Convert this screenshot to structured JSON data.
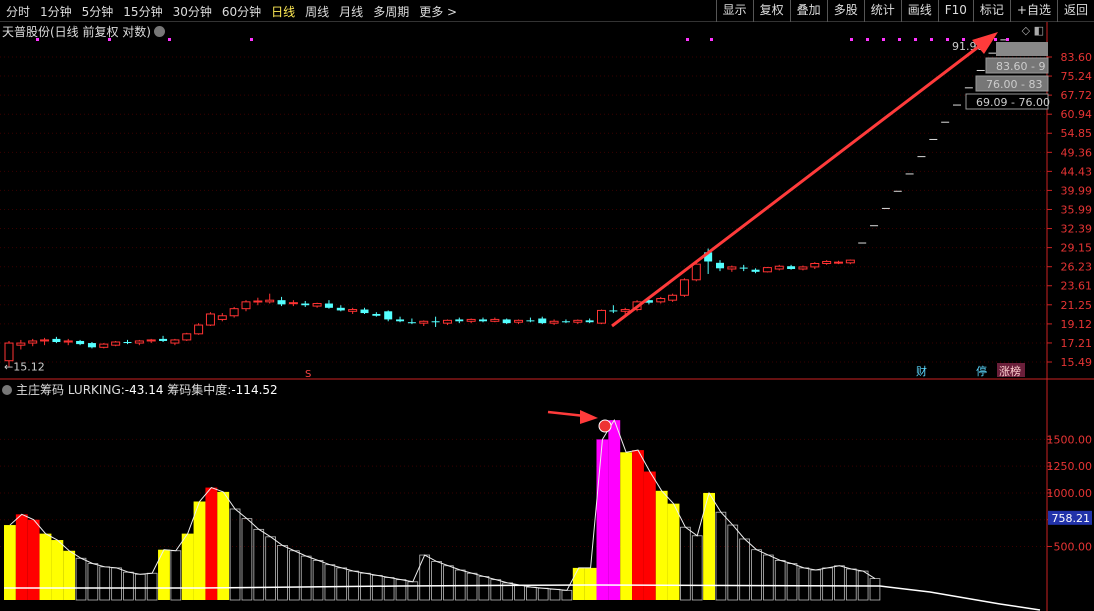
{
  "toolbar": {
    "periods": [
      "分时",
      "1分钟",
      "5分钟",
      "15分钟",
      "30分钟",
      "60分钟",
      "日线",
      "周线",
      "月线",
      "多周期",
      "更多 >"
    ],
    "active_period": "日线",
    "buttons": [
      "显示",
      "复权",
      "叠加",
      "多股",
      "统计",
      "画线",
      "F10",
      "标记",
      "+自选",
      "返回"
    ]
  },
  "title": "天普股份(日线 前复权 对数)",
  "price_axis": [
    "83.60",
    "75.24",
    "67.72",
    "60.94",
    "54.85",
    "49.36",
    "44.43",
    "39.99",
    "35.99",
    "32.39",
    "29.15",
    "26.23",
    "23.61",
    "21.25",
    "19.12",
    "17.21",
    "15.49"
  ],
  "low_marker": "15.12",
  "price_callouts": [
    "91.96",
    "83.60 - 9",
    "76.00 - 83",
    "69.09 - 76.00"
  ],
  "event_markers": {
    "finance": "财",
    "suspend": "停",
    "limit": "涨榜",
    "s_mark": "S"
  },
  "indicator": {
    "name": "主庄筹码",
    "lurking_label": "LURKING:",
    "lurking_value": "-43.14",
    "conc_label": "筹码集中度:",
    "conc_value": "-114.52",
    "axis": [
      "1500.00",
      "1250.00",
      "1000.00",
      "750.00",
      "500.00"
    ],
    "current_value": "758.21"
  },
  "colors": {
    "up": "#ff3333",
    "down": "#54ffff",
    "accent": "#ffea55",
    "volume_yellow": "#ffff00",
    "volume_red": "#ff0000",
    "volume_magenta": "#ff00ff",
    "arrow": "#ff3b3b",
    "dots": "#ff33ff"
  },
  "chart_data": {
    "type": "candlestick",
    "candles": [
      {
        "o": 15.6,
        "h": 17.4,
        "l": 15.1,
        "c": 17.2
      },
      {
        "o": 17.0,
        "h": 17.5,
        "l": 16.6,
        "c": 17.2
      },
      {
        "o": 17.2,
        "h": 17.6,
        "l": 16.9,
        "c": 17.4
      },
      {
        "o": 17.4,
        "h": 17.7,
        "l": 17.0,
        "c": 17.5
      },
      {
        "o": 17.6,
        "h": 17.8,
        "l": 17.2,
        "c": 17.3
      },
      {
        "o": 17.3,
        "h": 17.6,
        "l": 17.0,
        "c": 17.4
      },
      {
        "o": 17.4,
        "h": 17.5,
        "l": 17.0,
        "c": 17.1
      },
      {
        "o": 17.2,
        "h": 17.3,
        "l": 16.7,
        "c": 16.8
      },
      {
        "o": 16.8,
        "h": 17.2,
        "l": 16.7,
        "c": 17.1
      },
      {
        "o": 17.0,
        "h": 17.4,
        "l": 16.9,
        "c": 17.3
      },
      {
        "o": 17.3,
        "h": 17.5,
        "l": 17.1,
        "c": 17.2
      },
      {
        "o": 17.2,
        "h": 17.5,
        "l": 17.0,
        "c": 17.4
      },
      {
        "o": 17.4,
        "h": 17.6,
        "l": 17.2,
        "c": 17.5
      },
      {
        "o": 17.6,
        "h": 17.9,
        "l": 17.3,
        "c": 17.4
      },
      {
        "o": 17.2,
        "h": 17.6,
        "l": 17.0,
        "c": 17.5
      },
      {
        "o": 17.5,
        "h": 18.2,
        "l": 17.4,
        "c": 18.1
      },
      {
        "o": 18.1,
        "h": 19.2,
        "l": 18.0,
        "c": 19.0
      },
      {
        "o": 19.0,
        "h": 20.4,
        "l": 18.9,
        "c": 20.2
      },
      {
        "o": 19.6,
        "h": 20.3,
        "l": 19.4,
        "c": 20.0
      },
      {
        "o": 20.0,
        "h": 21.0,
        "l": 19.8,
        "c": 20.8
      },
      {
        "o": 20.8,
        "h": 21.8,
        "l": 20.5,
        "c": 21.6
      },
      {
        "o": 21.6,
        "h": 22.1,
        "l": 21.2,
        "c": 21.7
      },
      {
        "o": 21.6,
        "h": 22.6,
        "l": 21.4,
        "c": 21.8
      },
      {
        "o": 21.8,
        "h": 22.2,
        "l": 21.1,
        "c": 21.3
      },
      {
        "o": 21.4,
        "h": 21.8,
        "l": 21.1,
        "c": 21.5
      },
      {
        "o": 21.4,
        "h": 21.7,
        "l": 21.0,
        "c": 21.2
      },
      {
        "o": 21.1,
        "h": 21.5,
        "l": 20.9,
        "c": 21.4
      },
      {
        "o": 21.4,
        "h": 21.8,
        "l": 20.8,
        "c": 20.9
      },
      {
        "o": 20.9,
        "h": 21.2,
        "l": 20.5,
        "c": 20.6
      },
      {
        "o": 20.5,
        "h": 20.9,
        "l": 20.2,
        "c": 20.7
      },
      {
        "o": 20.7,
        "h": 20.9,
        "l": 20.2,
        "c": 20.3
      },
      {
        "o": 20.2,
        "h": 20.4,
        "l": 19.9,
        "c": 20.0
      },
      {
        "o": 20.5,
        "h": 20.6,
        "l": 19.4,
        "c": 19.6
      },
      {
        "o": 19.6,
        "h": 19.9,
        "l": 19.3,
        "c": 19.4
      },
      {
        "o": 19.3,
        "h": 19.7,
        "l": 19.1,
        "c": 19.2
      },
      {
        "o": 19.2,
        "h": 19.5,
        "l": 18.9,
        "c": 19.4
      },
      {
        "o": 19.4,
        "h": 19.9,
        "l": 18.8,
        "c": 19.3
      },
      {
        "o": 19.2,
        "h": 19.6,
        "l": 19.0,
        "c": 19.5
      },
      {
        "o": 19.6,
        "h": 19.8,
        "l": 19.2,
        "c": 19.4
      },
      {
        "o": 19.4,
        "h": 19.7,
        "l": 19.2,
        "c": 19.6
      },
      {
        "o": 19.6,
        "h": 19.8,
        "l": 19.3,
        "c": 19.4
      },
      {
        "o": 19.4,
        "h": 19.8,
        "l": 19.3,
        "c": 19.6
      },
      {
        "o": 19.6,
        "h": 19.7,
        "l": 19.1,
        "c": 19.2
      },
      {
        "o": 19.3,
        "h": 19.6,
        "l": 19.1,
        "c": 19.5
      },
      {
        "o": 19.5,
        "h": 19.8,
        "l": 19.3,
        "c": 19.4
      },
      {
        "o": 19.7,
        "h": 19.9,
        "l": 19.1,
        "c": 19.2
      },
      {
        "o": 19.2,
        "h": 19.6,
        "l": 19.0,
        "c": 19.4
      },
      {
        "o": 19.4,
        "h": 19.6,
        "l": 19.2,
        "c": 19.3
      },
      {
        "o": 19.3,
        "h": 19.6,
        "l": 19.1,
        "c": 19.5
      },
      {
        "o": 19.5,
        "h": 19.7,
        "l": 19.2,
        "c": 19.3
      },
      {
        "o": 19.2,
        "h": 20.7,
        "l": 19.1,
        "c": 20.6
      },
      {
        "o": 20.6,
        "h": 21.2,
        "l": 20.3,
        "c": 20.5
      },
      {
        "o": 20.5,
        "h": 20.9,
        "l": 20.1,
        "c": 20.7
      },
      {
        "o": 20.7,
        "h": 21.8,
        "l": 20.5,
        "c": 21.6
      },
      {
        "o": 21.8,
        "h": 22.1,
        "l": 21.3,
        "c": 21.5
      },
      {
        "o": 21.6,
        "h": 22.2,
        "l": 21.4,
        "c": 22.0
      },
      {
        "o": 21.8,
        "h": 22.6,
        "l": 21.6,
        "c": 22.4
      },
      {
        "o": 22.4,
        "h": 24.6,
        "l": 22.2,
        "c": 24.4
      },
      {
        "o": 24.4,
        "h": 26.8,
        "l": 24.2,
        "c": 26.6
      },
      {
        "o": 28.4,
        "h": 29.0,
        "l": 25.2,
        "c": 27.0
      },
      {
        "o": 26.8,
        "h": 27.2,
        "l": 25.6,
        "c": 26.0
      },
      {
        "o": 25.9,
        "h": 26.4,
        "l": 25.5,
        "c": 26.2
      },
      {
        "o": 26.1,
        "h": 26.5,
        "l": 25.6,
        "c": 26.0
      },
      {
        "o": 25.8,
        "h": 26.0,
        "l": 25.3,
        "c": 25.5
      },
      {
        "o": 25.5,
        "h": 26.2,
        "l": 25.4,
        "c": 26.1
      },
      {
        "o": 25.9,
        "h": 26.5,
        "l": 25.7,
        "c": 26.3
      },
      {
        "o": 26.3,
        "h": 26.5,
        "l": 25.8,
        "c": 25.9
      },
      {
        "o": 25.9,
        "h": 26.4,
        "l": 25.7,
        "c": 26.2
      },
      {
        "o": 26.2,
        "h": 26.9,
        "l": 25.9,
        "c": 26.7
      },
      {
        "o": 26.7,
        "h": 27.2,
        "l": 26.5,
        "c": 27.0
      },
      {
        "o": 26.9,
        "h": 27.1,
        "l": 26.6,
        "c": 26.9
      },
      {
        "o": 26.8,
        "h": 27.3,
        "l": 26.6,
        "c": 27.2
      },
      {
        "o": 29.9,
        "h": 29.9,
        "l": 29.9,
        "c": 29.9
      },
      {
        "o": 32.9,
        "h": 32.9,
        "l": 32.9,
        "c": 32.9
      },
      {
        "o": 36.2,
        "h": 36.2,
        "l": 36.2,
        "c": 36.2
      },
      {
        "o": 39.8,
        "h": 39.8,
        "l": 39.8,
        "c": 39.8
      },
      {
        "o": 43.8,
        "h": 43.8,
        "l": 43.8,
        "c": 43.8
      },
      {
        "o": 48.2,
        "h": 48.2,
        "l": 48.2,
        "c": 48.2
      },
      {
        "o": 53.0,
        "h": 53.0,
        "l": 53.0,
        "c": 53.0
      },
      {
        "o": 58.3,
        "h": 58.3,
        "l": 58.3,
        "c": 58.3
      },
      {
        "o": 64.1,
        "h": 64.1,
        "l": 64.1,
        "c": 64.1
      },
      {
        "o": 70.5,
        "h": 70.5,
        "l": 70.5,
        "c": 70.5
      },
      {
        "o": 77.6,
        "h": 77.6,
        "l": 77.6,
        "c": 77.6
      },
      {
        "o": 85.4,
        "h": 85.4,
        "l": 85.4,
        "c": 85.4
      },
      {
        "o": 91.9,
        "h": 91.9,
        "l": 91.9,
        "c": 91.9
      }
    ],
    "indicator_bars": [
      {
        "v": 700,
        "c": "yellow"
      },
      {
        "v": 800,
        "c": "red"
      },
      {
        "v": 750,
        "c": "red"
      },
      {
        "v": 620,
        "c": "yellow"
      },
      {
        "v": 560,
        "c": "yellow"
      },
      {
        "v": 460,
        "c": "yellow"
      },
      {
        "v": 390,
        "c": "w"
      },
      {
        "v": 340,
        "c": "w"
      },
      {
        "v": 310,
        "c": "w"
      },
      {
        "v": 300,
        "c": "w"
      },
      {
        "v": 260,
        "c": "w"
      },
      {
        "v": 240,
        "c": "w"
      },
      {
        "v": 250,
        "c": "w"
      },
      {
        "v": 470,
        "c": "yellow"
      },
      {
        "v": 460,
        "c": "w"
      },
      {
        "v": 620,
        "c": "yellow"
      },
      {
        "v": 920,
        "c": "yellow"
      },
      {
        "v": 1050,
        "c": "red"
      },
      {
        "v": 1010,
        "c": "yellow"
      },
      {
        "v": 850,
        "c": "w"
      },
      {
        "v": 760,
        "c": "w"
      },
      {
        "v": 660,
        "c": "w"
      },
      {
        "v": 590,
        "c": "w"
      },
      {
        "v": 510,
        "c": "w"
      },
      {
        "v": 460,
        "c": "w"
      },
      {
        "v": 410,
        "c": "w"
      },
      {
        "v": 370,
        "c": "w"
      },
      {
        "v": 330,
        "c": "w"
      },
      {
        "v": 300,
        "c": "w"
      },
      {
        "v": 270,
        "c": "w"
      },
      {
        "v": 250,
        "c": "w"
      },
      {
        "v": 230,
        "c": "w"
      },
      {
        "v": 210,
        "c": "w"
      },
      {
        "v": 190,
        "c": "w"
      },
      {
        "v": 170,
        "c": "w"
      },
      {
        "v": 420,
        "c": "w"
      },
      {
        "v": 360,
        "c": "w"
      },
      {
        "v": 320,
        "c": "w"
      },
      {
        "v": 280,
        "c": "w"
      },
      {
        "v": 250,
        "c": "w"
      },
      {
        "v": 220,
        "c": "w"
      },
      {
        "v": 190,
        "c": "w"
      },
      {
        "v": 160,
        "c": "w"
      },
      {
        "v": 140,
        "c": "w"
      },
      {
        "v": 120,
        "c": "w"
      },
      {
        "v": 110,
        "c": "w"
      },
      {
        "v": 100,
        "c": "w"
      },
      {
        "v": 90,
        "c": "w"
      },
      {
        "v": 300,
        "c": "yellow"
      },
      {
        "v": 300,
        "c": "yellow"
      },
      {
        "v": 1500,
        "c": "magenta"
      },
      {
        "v": 1680,
        "c": "magenta"
      },
      {
        "v": 1380,
        "c": "yellow"
      },
      {
        "v": 1400,
        "c": "red"
      },
      {
        "v": 1200,
        "c": "red"
      },
      {
        "v": 1020,
        "c": "yellow"
      },
      {
        "v": 900,
        "c": "yellow"
      },
      {
        "v": 680,
        "c": "w"
      },
      {
        "v": 600,
        "c": "w"
      },
      {
        "v": 1000,
        "c": "yellow"
      },
      {
        "v": 820,
        "c": "w"
      },
      {
        "v": 700,
        "c": "w"
      },
      {
        "v": 570,
        "c": "w"
      },
      {
        "v": 470,
        "c": "w"
      },
      {
        "v": 420,
        "c": "w"
      },
      {
        "v": 370,
        "c": "w"
      },
      {
        "v": 340,
        "c": "w"
      },
      {
        "v": 300,
        "c": "w"
      },
      {
        "v": 280,
        "c": "w"
      },
      {
        "v": 300,
        "c": "w"
      },
      {
        "v": 320,
        "c": "w"
      },
      {
        "v": 290,
        "c": "w"
      },
      {
        "v": 270,
        "c": "w"
      },
      {
        "v": 200,
        "c": "w"
      }
    ]
  }
}
